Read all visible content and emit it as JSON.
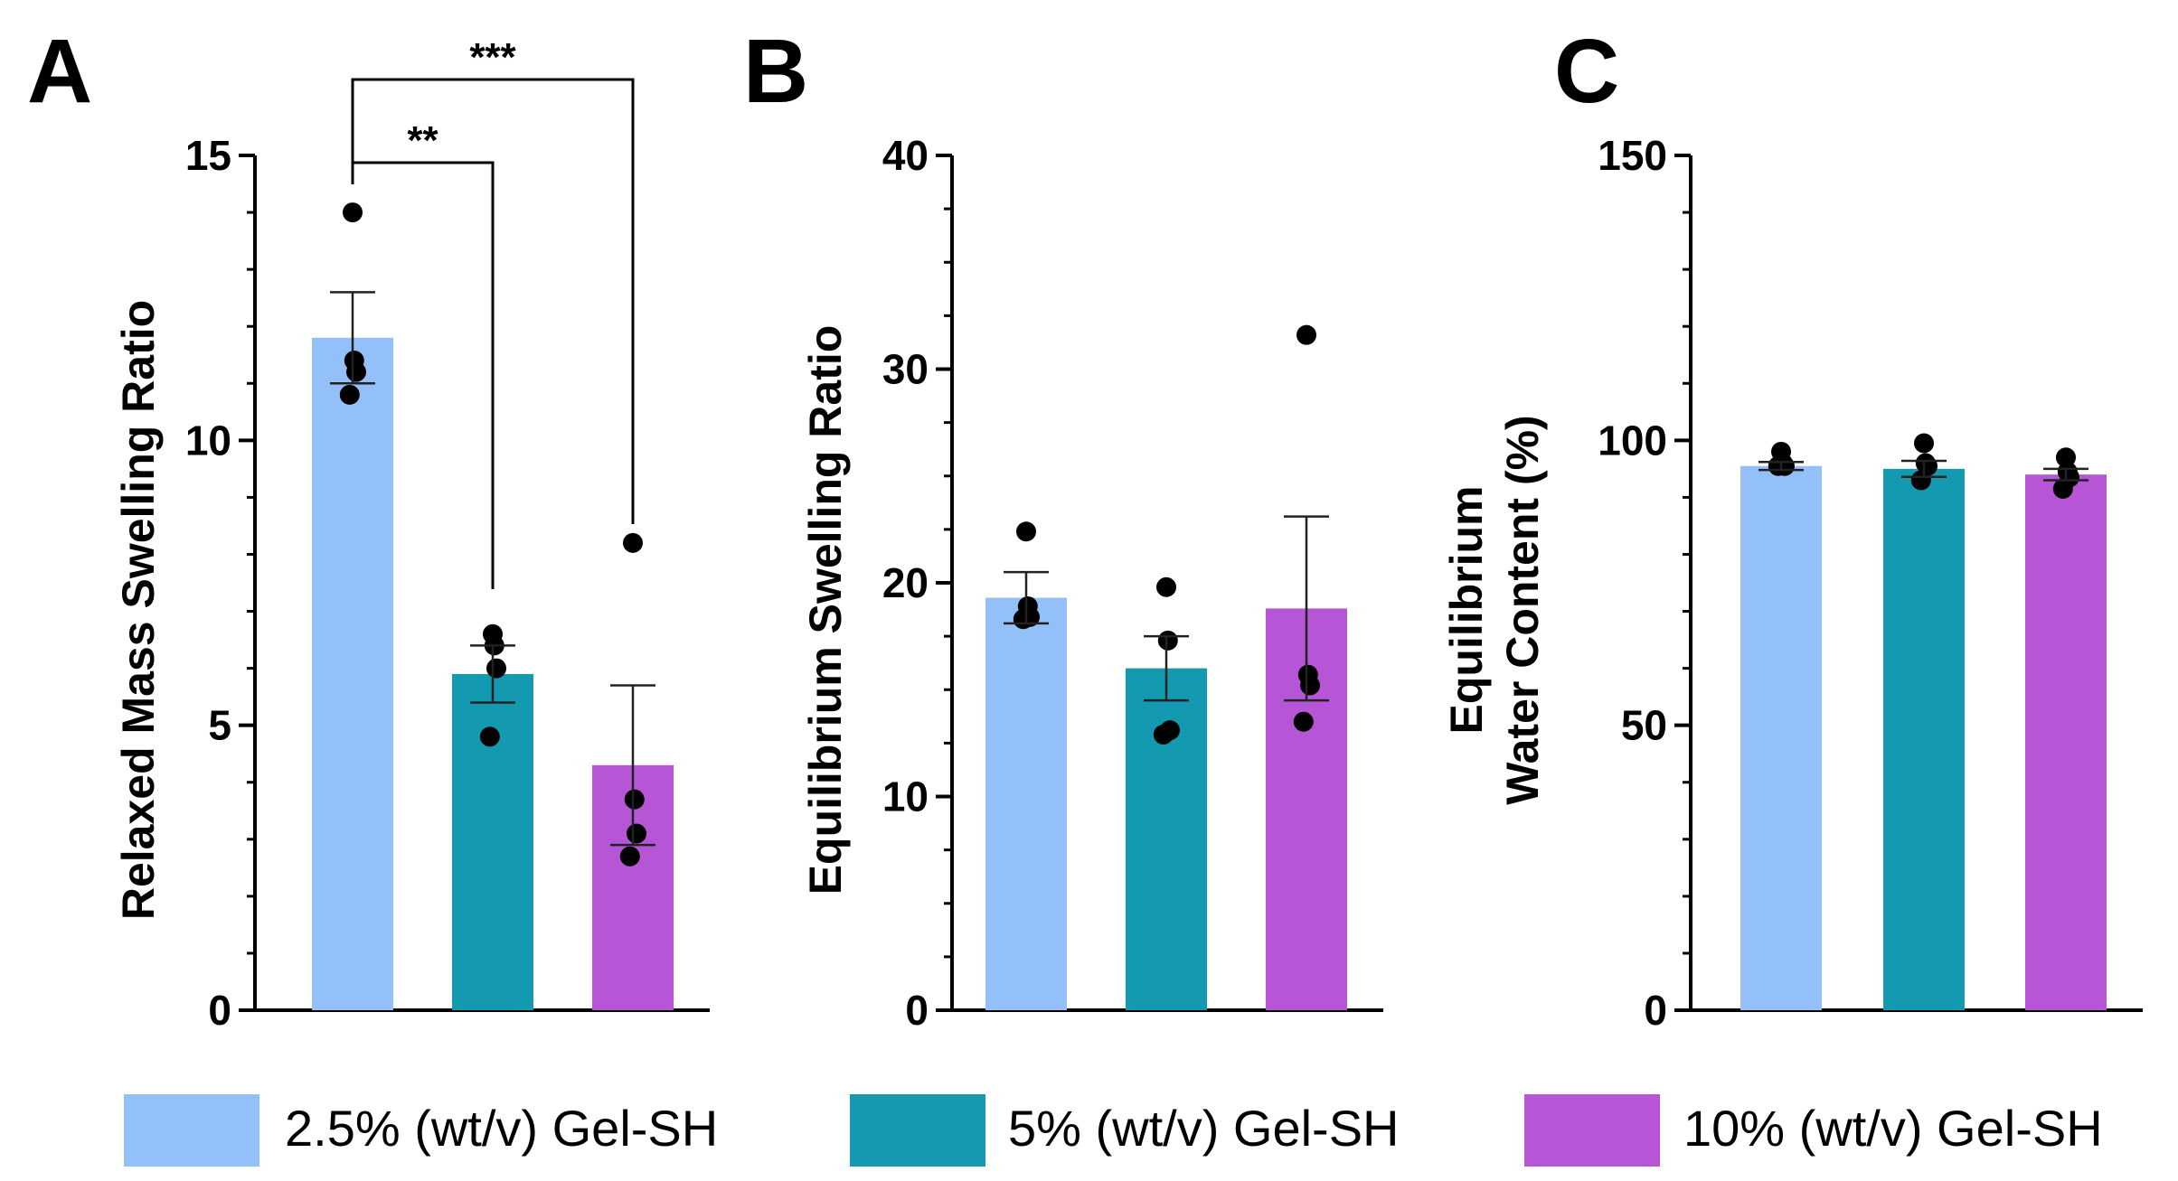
{
  "figure": {
    "legend": [
      {
        "label": "2.5% (wt/v) Gel-SH",
        "color": "#93c0f8"
      },
      {
        "label": "5% (wt/v) Gel-SH",
        "color": "#1399b0"
      },
      {
        "label": "10% (wt/v) Gel-SH",
        "color": "#b656d6"
      }
    ],
    "point_color": "#000000"
  },
  "chart_data": [
    {
      "type": "bar",
      "panel": "A",
      "title": "",
      "xlabel": "",
      "ylabel": "Relaxed Mass Swelling Ratio",
      "ylim": [
        0,
        15
      ],
      "yticks": [
        0,
        5,
        10,
        15
      ],
      "categories": [
        "2.5% (wt/v) Gel-SH",
        "5% (wt/v) Gel-SH",
        "10% (wt/v) Gel-SH"
      ],
      "values": [
        11.8,
        5.9,
        4.3
      ],
      "error_sem": [
        0.8,
        0.5,
        1.4
      ],
      "points": [
        [
          14.0,
          11.4,
          11.2,
          10.8
        ],
        [
          6.6,
          6.4,
          6.0,
          4.8
        ],
        [
          8.2,
          3.7,
          3.1,
          2.7
        ]
      ],
      "significance": [
        {
          "from": 0,
          "to": 1,
          "label": "**"
        },
        {
          "from": 0,
          "to": 2,
          "label": "***"
        }
      ]
    },
    {
      "type": "bar",
      "panel": "B",
      "title": "",
      "xlabel": "",
      "ylabel": "Equilibrium Swelling Ratio",
      "ylim": [
        0,
        40
      ],
      "yticks": [
        0,
        10,
        20,
        30,
        40
      ],
      "categories": [
        "2.5% (wt/v) Gel-SH",
        "5% (wt/v) Gel-SH",
        "10% (wt/v) Gel-SH"
      ],
      "values": [
        19.3,
        16.0,
        18.8
      ],
      "error_sem": [
        1.2,
        1.5,
        4.3
      ],
      "points": [
        [
          22.4,
          18.9,
          18.4,
          18.3
        ],
        [
          19.8,
          17.3,
          13.1,
          12.9
        ],
        [
          31.6,
          15.7,
          15.2,
          13.5
        ]
      ],
      "significance": []
    },
    {
      "type": "bar",
      "panel": "C",
      "title": "",
      "xlabel": "",
      "ylabel": "Equilibrium\nWater Content (%)",
      "ylim": [
        0,
        150
      ],
      "yticks": [
        0,
        50,
        100,
        150
      ],
      "categories": [
        "2.5% (wt/v) Gel-SH",
        "5% (wt/v) Gel-SH",
        "10% (wt/v) Gel-SH"
      ],
      "values": [
        95.5,
        95.0,
        94.0
      ],
      "error_sem": [
        0.7,
        1.4,
        1.0
      ],
      "points": [
        [
          98.0,
          96.0,
          95.5,
          95.5
        ],
        [
          99.5,
          96.0,
          95.5,
          93.0
        ],
        [
          97.0,
          94.5,
          93.5,
          91.5
        ]
      ],
      "significance": []
    }
  ]
}
